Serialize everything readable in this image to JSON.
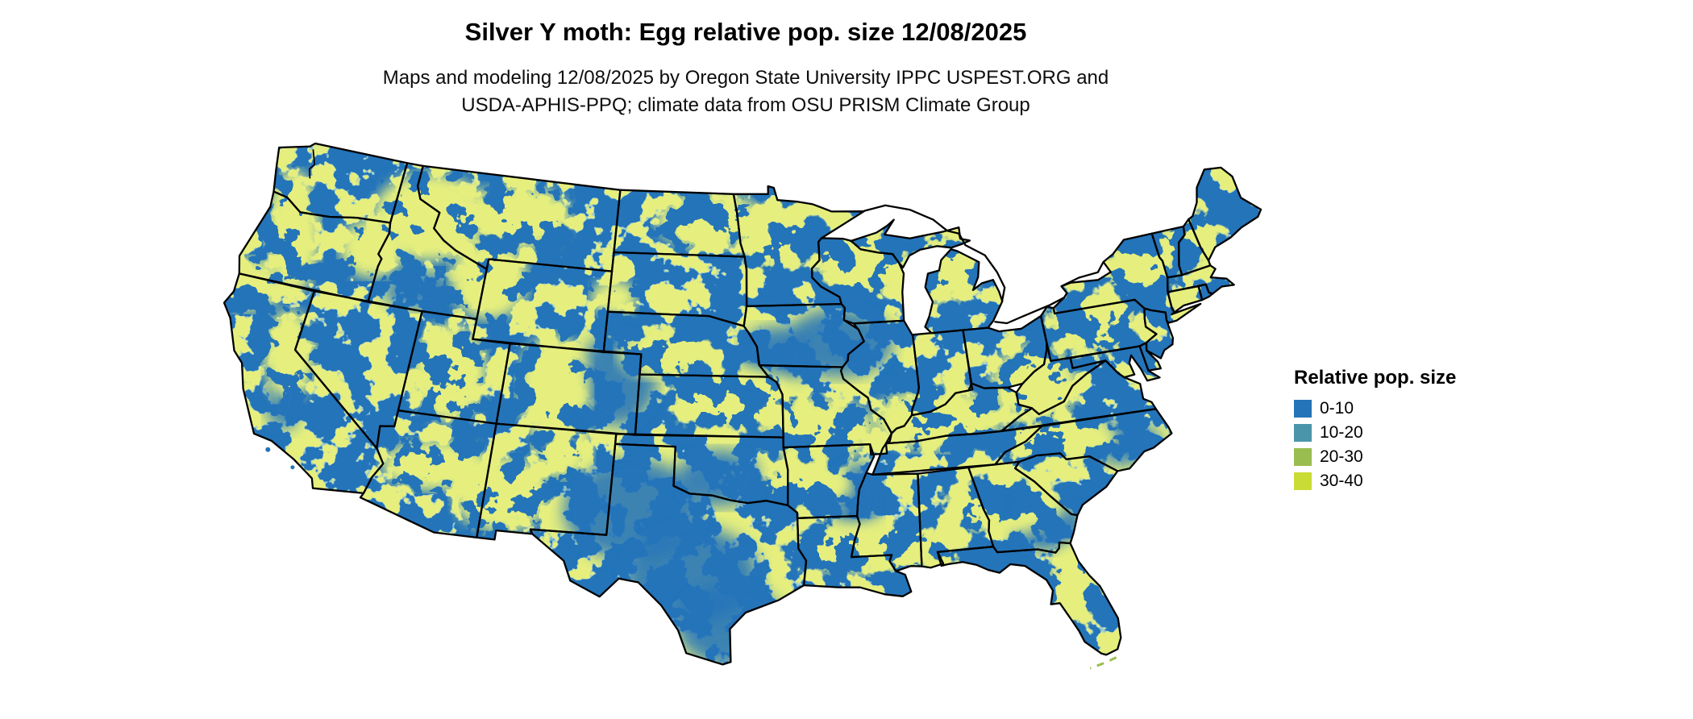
{
  "figure": {
    "title": "Silver Y moth: Egg relative pop. size 12/08/2025",
    "subtitle_line1": "Maps and modeling 12/08/2025 by Oregon State University IPPC USPEST.ORG and",
    "subtitle_line2": "USDA-APHIS-PPQ; climate data from OSU PRISM Climate Group"
  },
  "legend": {
    "title": "Relative pop. size",
    "items": [
      {
        "label": "0-10",
        "color": "#2474b9"
      },
      {
        "label": "10-20",
        "color": "#4b95ab"
      },
      {
        "label": "20-30",
        "color": "#9abd4f"
      },
      {
        "label": "30-40",
        "color": "#c9dc35"
      }
    ]
  },
  "map": {
    "region": "Contiguous United States",
    "base_color": "#2474b9",
    "border_color": "#000000",
    "background": "#ffffff"
  }
}
